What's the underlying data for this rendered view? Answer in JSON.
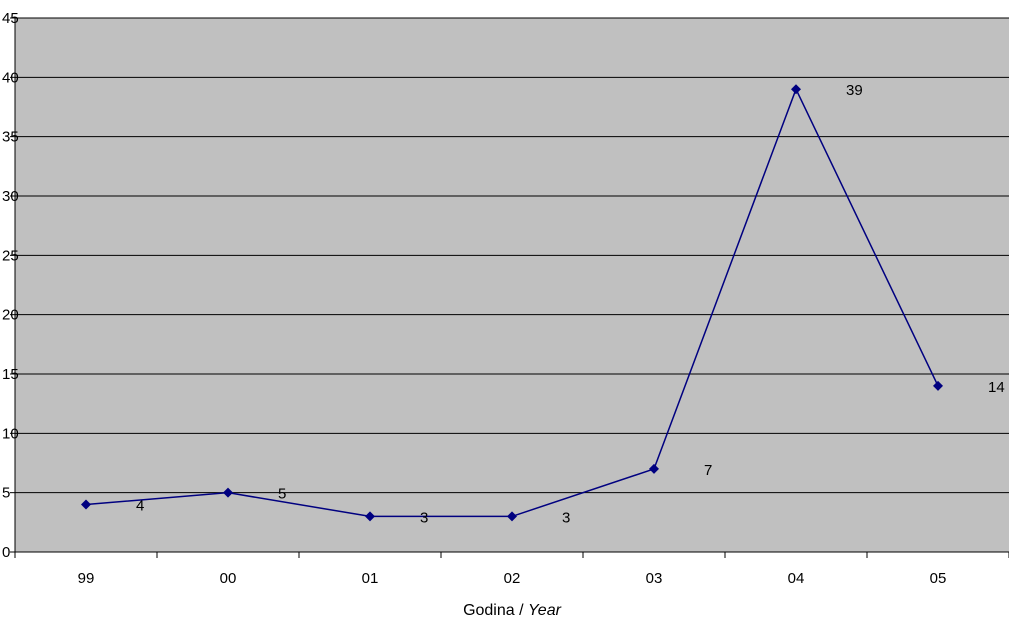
{
  "chart_data": {
    "type": "line",
    "categories": [
      "99",
      "00",
      "01",
      "02",
      "03",
      "04",
      "05"
    ],
    "series": [
      {
        "values": [
          4,
          5,
          3,
          3,
          7,
          39,
          14
        ]
      }
    ],
    "data_labels": [
      "4",
      "5",
      "3",
      "3",
      "7",
      "39",
      "14"
    ],
    "xlabel": "Godina / ",
    "xlabel_italic": "Year",
    "ylabel": "",
    "ylim": [
      0,
      45
    ],
    "ytick_step": 5,
    "grid": true,
    "legend": "none",
    "colors": {
      "plot_background": "#c0c0c0",
      "series_line": "#000080",
      "gridline": "#000000"
    }
  }
}
